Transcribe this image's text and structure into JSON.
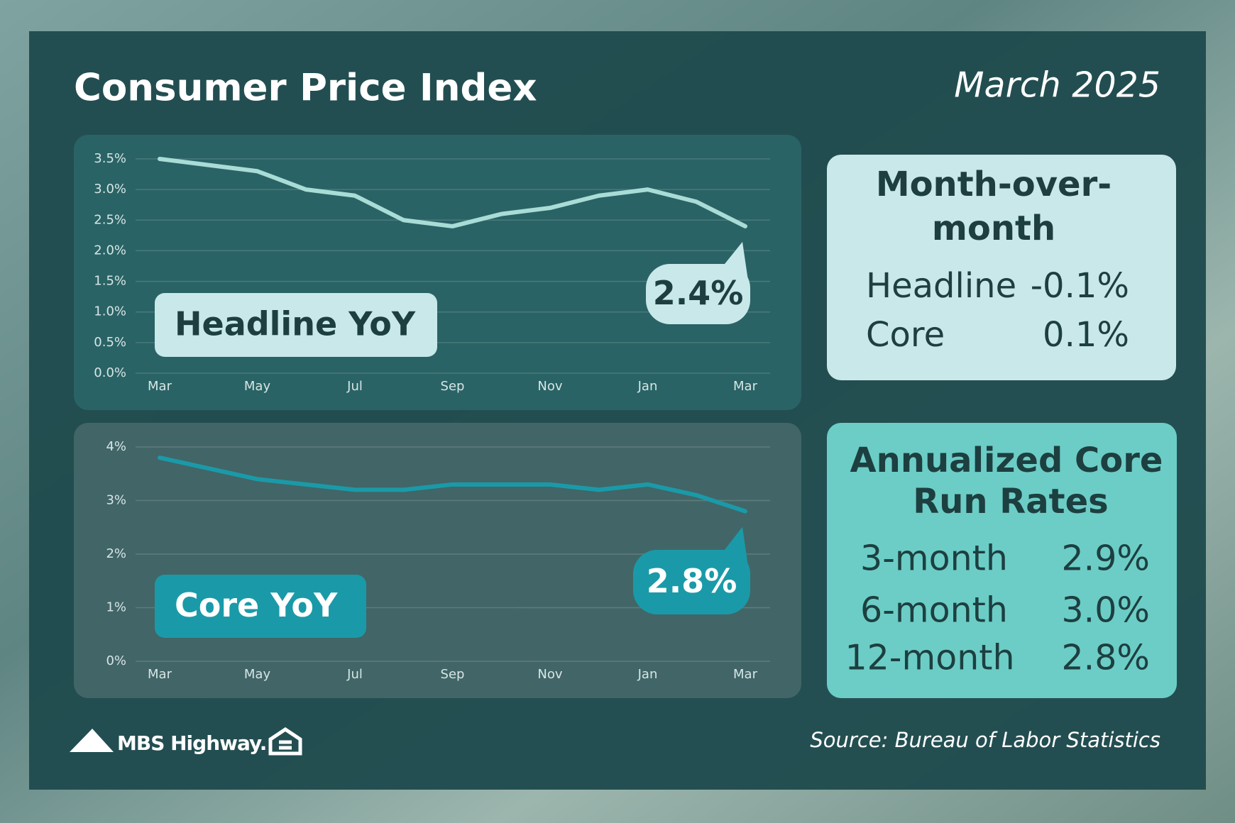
{
  "header": {
    "title": "Consumer Price Index",
    "date": "March 2025"
  },
  "chart_data": [
    {
      "type": "line",
      "title": "Headline YoY",
      "categories": [
        "Mar",
        null,
        "May",
        null,
        "Jul",
        null,
        "Sep",
        null,
        "Nov",
        null,
        "Jan",
        null,
        "Mar"
      ],
      "values": [
        3.5,
        3.4,
        3.3,
        3.0,
        2.9,
        2.5,
        2.4,
        2.6,
        2.7,
        2.9,
        3.0,
        2.8,
        2.4
      ],
      "value_labels": [
        null,
        null,
        null,
        null,
        null,
        null,
        null,
        null,
        null,
        null,
        null,
        null,
        "2.4%"
      ],
      "color": "#a9dcd6",
      "ylim": [
        0,
        3.5
      ],
      "yticks": [
        {
          "value": 0,
          "label": "0.0%"
        },
        {
          "value": 0.5,
          "label": "0.5%"
        },
        {
          "value": 1,
          "label": "1.0%"
        },
        {
          "value": 1.5,
          "label": "1.5%"
        },
        {
          "value": 2,
          "label": "2.0%"
        },
        {
          "value": 2.5,
          "label": "2.5%"
        },
        {
          "value": 3,
          "label": "3.0%"
        },
        {
          "value": 3.5,
          "label": "3.5%"
        }
      ],
      "grid": true
    },
    {
      "type": "line",
      "title": "Core YoY",
      "categories": [
        "Mar",
        null,
        "May",
        null,
        "Jul",
        null,
        "Sep",
        null,
        "Nov",
        null,
        "Jan",
        null,
        "Mar"
      ],
      "values": [
        3.8,
        3.6,
        3.4,
        3.3,
        3.2,
        3.2,
        3.3,
        3.3,
        3.3,
        3.2,
        3.3,
        3.1,
        2.8
      ],
      "value_labels": [
        null,
        null,
        null,
        null,
        null,
        null,
        null,
        null,
        null,
        null,
        null,
        null,
        "2.8%"
      ],
      "color": "#1a9aa8",
      "ylim": [
        0,
        4
      ],
      "yticks": [
        {
          "value": 0,
          "label": "0%"
        },
        {
          "value": 1,
          "label": "1%"
        },
        {
          "value": 2,
          "label": "2%"
        },
        {
          "value": 3,
          "label": "3%"
        },
        {
          "value": 4,
          "label": "4%"
        }
      ],
      "grid": true
    }
  ],
  "mom": {
    "title_lines": [
      "Month-over-",
      "month"
    ],
    "rows": [
      [
        "Headline",
        "-0.1%"
      ],
      [
        "Core",
        "0.1%"
      ]
    ]
  },
  "run_rates": {
    "title_lines": [
      "Annualized Core",
      "Run Rates"
    ],
    "rows": [
      [
        "3-month",
        "2.9%"
      ],
      [
        "6-month",
        "3.0%"
      ],
      [
        "12-month",
        "2.8%"
      ]
    ]
  },
  "footer": {
    "logo_text": "MBS Highway.",
    "source": "Source: Bureau of Labor Statistics"
  }
}
